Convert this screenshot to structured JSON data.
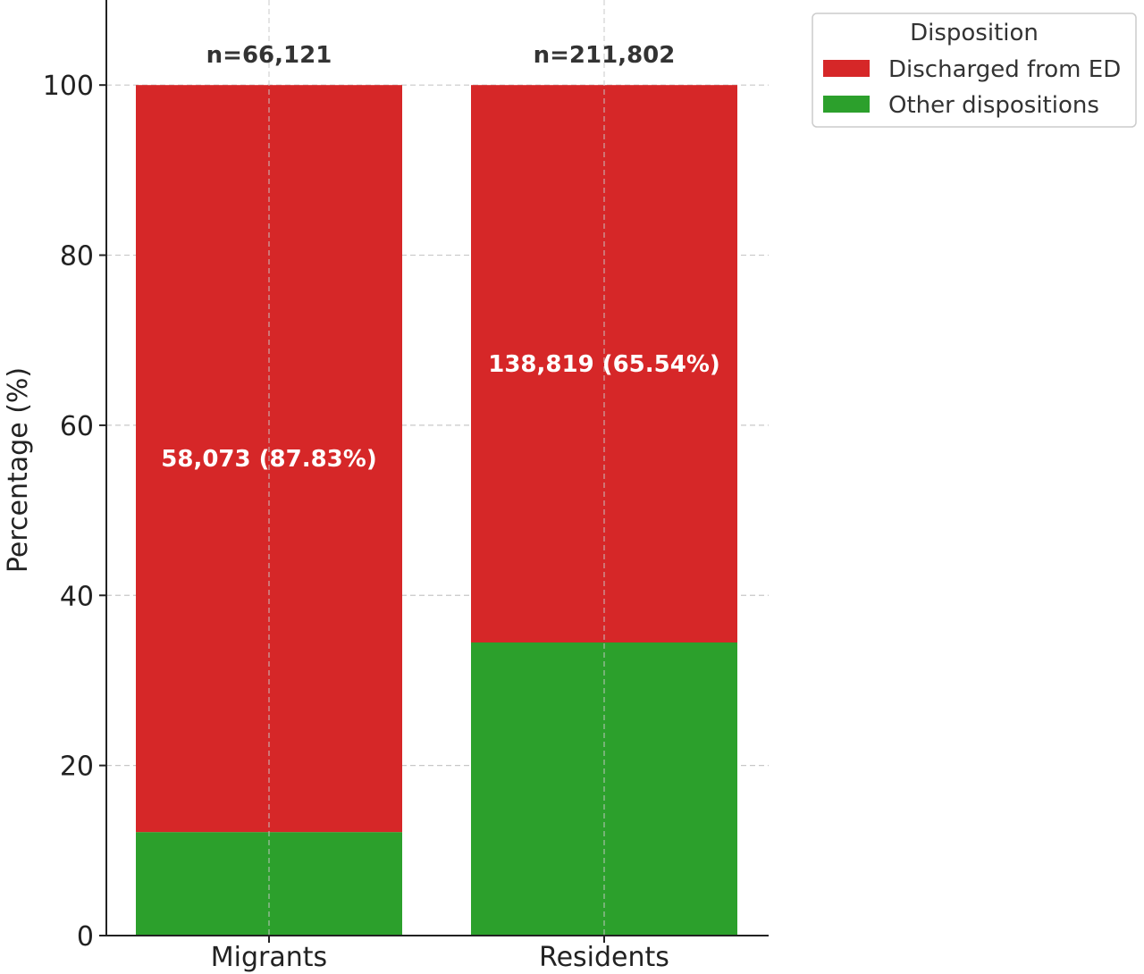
{
  "chart_data": {
    "type": "bar",
    "stacked": true,
    "title": "",
    "xlabel": "",
    "ylabel": "Percentage (%)",
    "ylim": [
      0,
      110
    ],
    "yticks": [
      0,
      20,
      40,
      60,
      80,
      100
    ],
    "ytick_labels": [
      "0",
      "20",
      "40",
      "60",
      "80",
      "100"
    ],
    "grid": true,
    "categories": [
      "Migrants",
      "Residents"
    ],
    "totals": [
      "n=66,121",
      "n=211,802"
    ],
    "series": [
      {
        "name": "Other dispositions",
        "color": "#2ca02c",
        "values": [
          12.17,
          34.46
        ]
      },
      {
        "name": "Discharged from ED",
        "color": "#d62728",
        "values": [
          87.83,
          65.54
        ],
        "labels": [
          "58,073 (87.83%)",
          "138,819 (65.54%)"
        ]
      }
    ],
    "legend": {
      "title": "Disposition",
      "placement": "outside-top-right",
      "entries": [
        {
          "label": "Discharged from ED",
          "color": "#d62728"
        },
        {
          "label": "Other dispositions",
          "color": "#2ca02c"
        }
      ]
    }
  }
}
